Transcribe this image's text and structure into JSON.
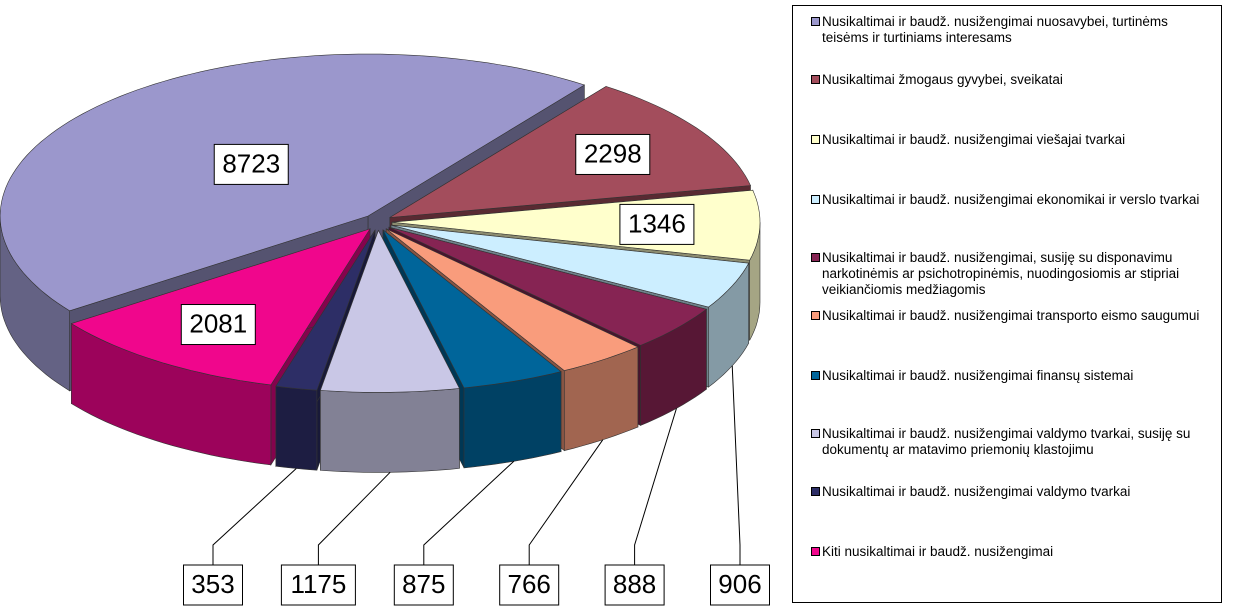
{
  "chart_data": {
    "type": "pie",
    "categories": [
      "Nusikaltimai ir baudž. nusižengimai nuosavybei, turtinėms teisėms ir turtiniams interesams",
      "Nusikaltimai žmogaus gyvybei, sveikatai",
      "Nusikaltimai ir baudž. nusižengimai viešajai tvarkai",
      "Nusikaltimai ir baudž. nusižengimai ekonomikai ir verslo tvarkai",
      "Nusikaltimai ir baudž. nusižengimai, susiję su disponavimu narkotinėmis ar psichotropinėmis, nuodingosiomis ar stipriai veikiančiomis medžiagomis",
      "Nusikaltimai ir baudž. nusižengimai transporto eismo saugumui",
      "Nusikaltimai ir baudž. nusižengimai finansų sistemai",
      "Nusikaltimai ir baudž. nusižengimai valdymo tvarkai, susiję su dokumentų ar matavimo priemonių klastojimu",
      "Nusikaltimai ir baudž. nusižengimai valdymo tvarkai",
      "Kiti nusikaltimai ir baudž. nusižengimai"
    ],
    "values": [
      8723,
      2298,
      1346,
      906,
      888,
      766,
      875,
      1175,
      353,
      2081
    ],
    "colors": [
      "#9b97cc",
      "#a34d5c",
      "#ffffcc",
      "#cceeff",
      "#862453",
      "#f99c7c",
      "#00659a",
      "#c9c7e6",
      "#2d2e66",
      "#f0068c"
    ]
  }
}
